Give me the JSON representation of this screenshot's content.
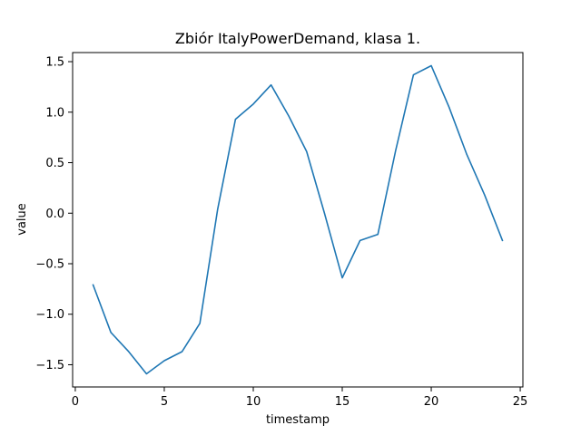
{
  "chart_data": {
    "type": "line",
    "title": "Zbiór ItalyPowerDemand, klasa 1.",
    "xlabel": "timestamp",
    "ylabel": "value",
    "xlim": [
      -0.15,
      25.15
    ],
    "ylim": [
      -1.72,
      1.59
    ],
    "xticks": [
      0,
      5,
      10,
      15,
      20,
      25
    ],
    "xtick_labels": [
      "0",
      "5",
      "10",
      "15",
      "20",
      "25"
    ],
    "yticks": [
      1.5,
      1.0,
      0.5,
      0.0,
      -0.5,
      -1.0,
      -1.5
    ],
    "ytick_labels": [
      "1.5",
      "1.0",
      "0.5",
      "0.0",
      "−0.5",
      "−1.0",
      "−1.5"
    ],
    "grid": false,
    "series": [
      {
        "color": "#1f77b4",
        "x": [
          1,
          2,
          3,
          4,
          5,
          6,
          7,
          8,
          9,
          10,
          11,
          12,
          13,
          14,
          15,
          16,
          17,
          18,
          19,
          20,
          21,
          22,
          23,
          24
        ],
        "y": [
          -0.71,
          -1.18,
          -1.37,
          -1.59,
          -1.46,
          -1.37,
          -1.09,
          0.04,
          0.93,
          1.08,
          1.27,
          0.96,
          0.61,
          0.0,
          -0.64,
          -0.27,
          -0.21,
          0.62,
          1.37,
          1.46,
          1.05,
          0.58,
          0.18,
          -0.27
        ]
      }
    ]
  }
}
